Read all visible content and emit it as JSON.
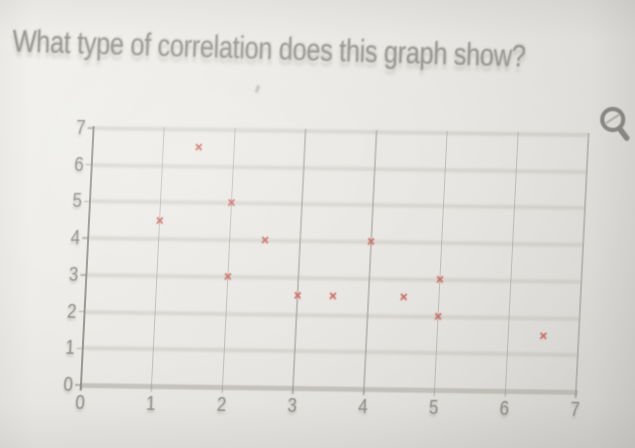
{
  "question": {
    "title": "What type of correlation does this graph show?"
  },
  "icons": {
    "magnifier": "magnifier-icon"
  },
  "colors": {
    "background": "#eceae6",
    "title_text": "#95948e",
    "tick_text": "#8d8c87",
    "grid_band": "#d8d6d1",
    "grid_vertical": "#b6b5b0",
    "axis_line": "#8f8e89",
    "marker": "#cb6e64",
    "icon": "#8a8987"
  },
  "chart_data": {
    "type": "scatter",
    "title": "",
    "xlabel": "",
    "ylabel": "",
    "xlim": [
      0,
      7
    ],
    "ylim": [
      0,
      7
    ],
    "x_ticks": [
      "0",
      "1",
      "2",
      "3",
      "4",
      "5",
      "6",
      "7"
    ],
    "y_ticks": [
      "0",
      "1",
      "2",
      "3",
      "4",
      "5",
      "6",
      "7"
    ],
    "grid": "on",
    "legend": "none",
    "marker": "x",
    "marker_glyph": "×",
    "marker_color": "#cb6e64",
    "points": [
      [
        1,
        4.5
      ],
      [
        1.5,
        6.5
      ],
      [
        2,
        3
      ],
      [
        2,
        5
      ],
      [
        2.5,
        4
      ],
      [
        3,
        2.5
      ],
      [
        3.5,
        2.5
      ],
      [
        4,
        4
      ],
      [
        4.5,
        2.5
      ],
      [
        5,
        2
      ],
      [
        5,
        3
      ],
      [
        6.5,
        1.5
      ]
    ]
  }
}
